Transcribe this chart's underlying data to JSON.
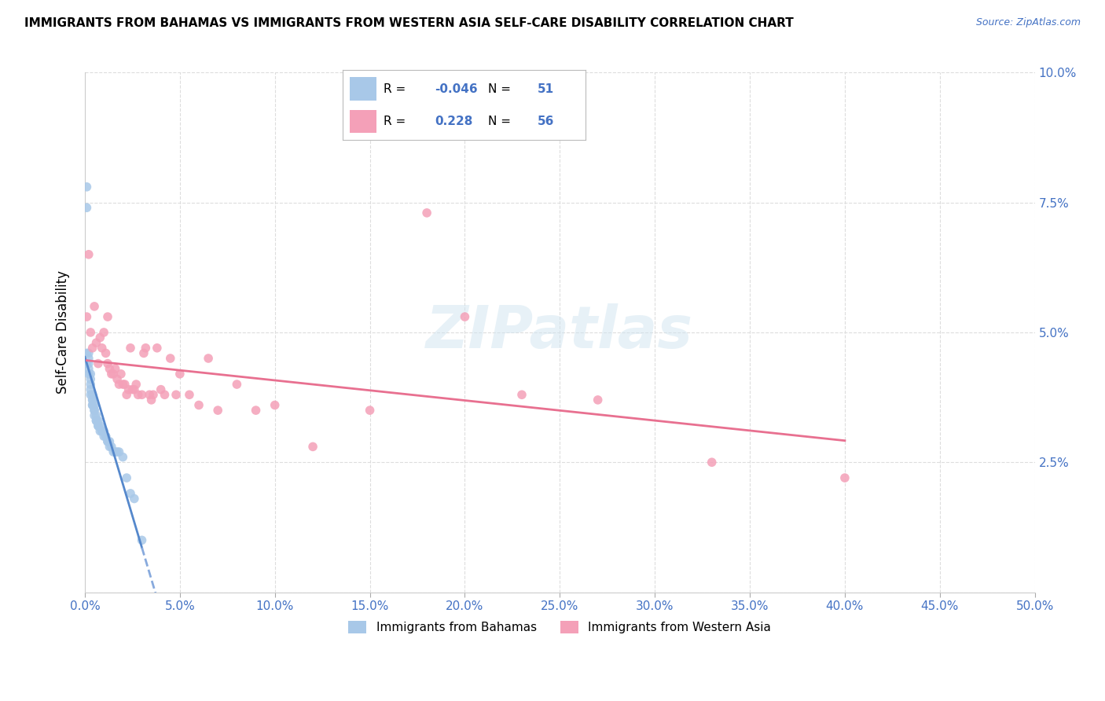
{
  "title": "IMMIGRANTS FROM BAHAMAS VS IMMIGRANTS FROM WESTERN ASIA SELF-CARE DISABILITY CORRELATION CHART",
  "source": "Source: ZipAtlas.com",
  "ylabel": "Self-Care Disability",
  "xlim": [
    0.0,
    0.5
  ],
  "ylim": [
    0.0,
    0.1
  ],
  "xticks": [
    0.0,
    0.05,
    0.1,
    0.15,
    0.2,
    0.25,
    0.3,
    0.35,
    0.4,
    0.45,
    0.5
  ],
  "yticks_right": [
    0.1,
    0.075,
    0.05,
    0.025
  ],
  "ytick_right_labels": [
    "10.0%",
    "7.5%",
    "5.0%",
    "2.5%"
  ],
  "legend_R_blue": "-0.046",
  "legend_N_blue": "51",
  "legend_R_pink": "0.228",
  "legend_N_pink": "56",
  "color_blue": "#a8c8e8",
  "color_pink": "#f4a0b8",
  "line_blue_solid": "#5588cc",
  "line_blue_dash": "#88aadd",
  "line_pink": "#e87090",
  "watermark": "ZIPatlas",
  "bg_color": "#ffffff",
  "grid_color": "#dddddd",
  "blue_scatter_x": [
    0.001,
    0.001,
    0.001,
    0.001,
    0.002,
    0.002,
    0.002,
    0.002,
    0.002,
    0.003,
    0.003,
    0.003,
    0.003,
    0.003,
    0.004,
    0.004,
    0.004,
    0.004,
    0.004,
    0.005,
    0.005,
    0.005,
    0.005,
    0.006,
    0.006,
    0.006,
    0.007,
    0.007,
    0.007,
    0.008,
    0.008,
    0.009,
    0.009,
    0.01,
    0.01,
    0.011,
    0.011,
    0.012,
    0.012,
    0.013,
    0.013,
    0.014,
    0.015,
    0.016,
    0.017,
    0.018,
    0.02,
    0.022,
    0.024,
    0.026,
    0.03
  ],
  "blue_scatter_y": [
    0.078,
    0.074,
    0.046,
    0.044,
    0.046,
    0.045,
    0.044,
    0.043,
    0.042,
    0.042,
    0.041,
    0.04,
    0.039,
    0.038,
    0.038,
    0.037,
    0.037,
    0.036,
    0.036,
    0.036,
    0.035,
    0.035,
    0.034,
    0.034,
    0.033,
    0.033,
    0.033,
    0.032,
    0.032,
    0.032,
    0.031,
    0.031,
    0.031,
    0.031,
    0.03,
    0.03,
    0.03,
    0.029,
    0.029,
    0.029,
    0.028,
    0.028,
    0.027,
    0.027,
    0.027,
    0.027,
    0.026,
    0.022,
    0.019,
    0.018,
    0.01
  ],
  "pink_scatter_x": [
    0.001,
    0.002,
    0.003,
    0.004,
    0.005,
    0.006,
    0.007,
    0.008,
    0.009,
    0.01,
    0.011,
    0.012,
    0.012,
    0.013,
    0.014,
    0.015,
    0.016,
    0.017,
    0.018,
    0.019,
    0.02,
    0.021,
    0.022,
    0.023,
    0.024,
    0.025,
    0.026,
    0.027,
    0.028,
    0.03,
    0.031,
    0.032,
    0.034,
    0.035,
    0.036,
    0.038,
    0.04,
    0.042,
    0.045,
    0.048,
    0.05,
    0.055,
    0.06,
    0.065,
    0.07,
    0.08,
    0.09,
    0.1,
    0.12,
    0.15,
    0.18,
    0.2,
    0.23,
    0.27,
    0.33,
    0.4
  ],
  "pink_scatter_y": [
    0.053,
    0.065,
    0.05,
    0.047,
    0.055,
    0.048,
    0.044,
    0.049,
    0.047,
    0.05,
    0.046,
    0.053,
    0.044,
    0.043,
    0.042,
    0.042,
    0.043,
    0.041,
    0.04,
    0.042,
    0.04,
    0.04,
    0.038,
    0.039,
    0.047,
    0.039,
    0.039,
    0.04,
    0.038,
    0.038,
    0.046,
    0.047,
    0.038,
    0.037,
    0.038,
    0.047,
    0.039,
    0.038,
    0.045,
    0.038,
    0.042,
    0.038,
    0.036,
    0.045,
    0.035,
    0.04,
    0.035,
    0.036,
    0.028,
    0.035,
    0.073,
    0.053,
    0.038,
    0.037,
    0.025,
    0.022
  ]
}
